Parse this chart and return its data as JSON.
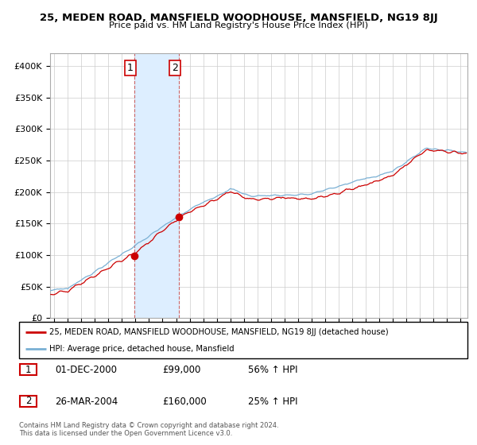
{
  "title": "25, MEDEN ROAD, MANSFIELD WOODHOUSE, MANSFIELD, NG19 8JJ",
  "subtitle": "Price paid vs. HM Land Registry's House Price Index (HPI)",
  "legend_line1": "25, MEDEN ROAD, MANSFIELD WOODHOUSE, MANSFIELD, NG19 8JJ (detached house)",
  "legend_line2": "HPI: Average price, detached house, Mansfield",
  "sale1_date": "01-DEC-2000",
  "sale1_price": "£99,000",
  "sale1_hpi": "56% ↑ HPI",
  "sale2_date": "26-MAR-2004",
  "sale2_price": "£160,000",
  "sale2_hpi": "25% ↑ HPI",
  "footnote": "Contains HM Land Registry data © Crown copyright and database right 2024.\nThis data is licensed under the Open Government Licence v3.0.",
  "sale1_x": 2000.917,
  "sale1_y": 99000,
  "sale2_x": 2004.233,
  "sale2_y": 160000,
  "red_color": "#cc0000",
  "blue_color": "#7ab0d4",
  "highlight_color": "#ddeeff",
  "dashed_color": "#cc6666",
  "ylim": [
    0,
    420000
  ],
  "xlim_start": 1994.7,
  "xlim_end": 2025.5,
  "yticks": [
    0,
    50000,
    100000,
    150000,
    200000,
    250000,
    300000,
    350000,
    400000
  ],
  "ylabels": [
    "£0",
    "£50K",
    "£100K",
    "£150K",
    "£200K",
    "£250K",
    "£300K",
    "£350K",
    "£400K"
  ]
}
